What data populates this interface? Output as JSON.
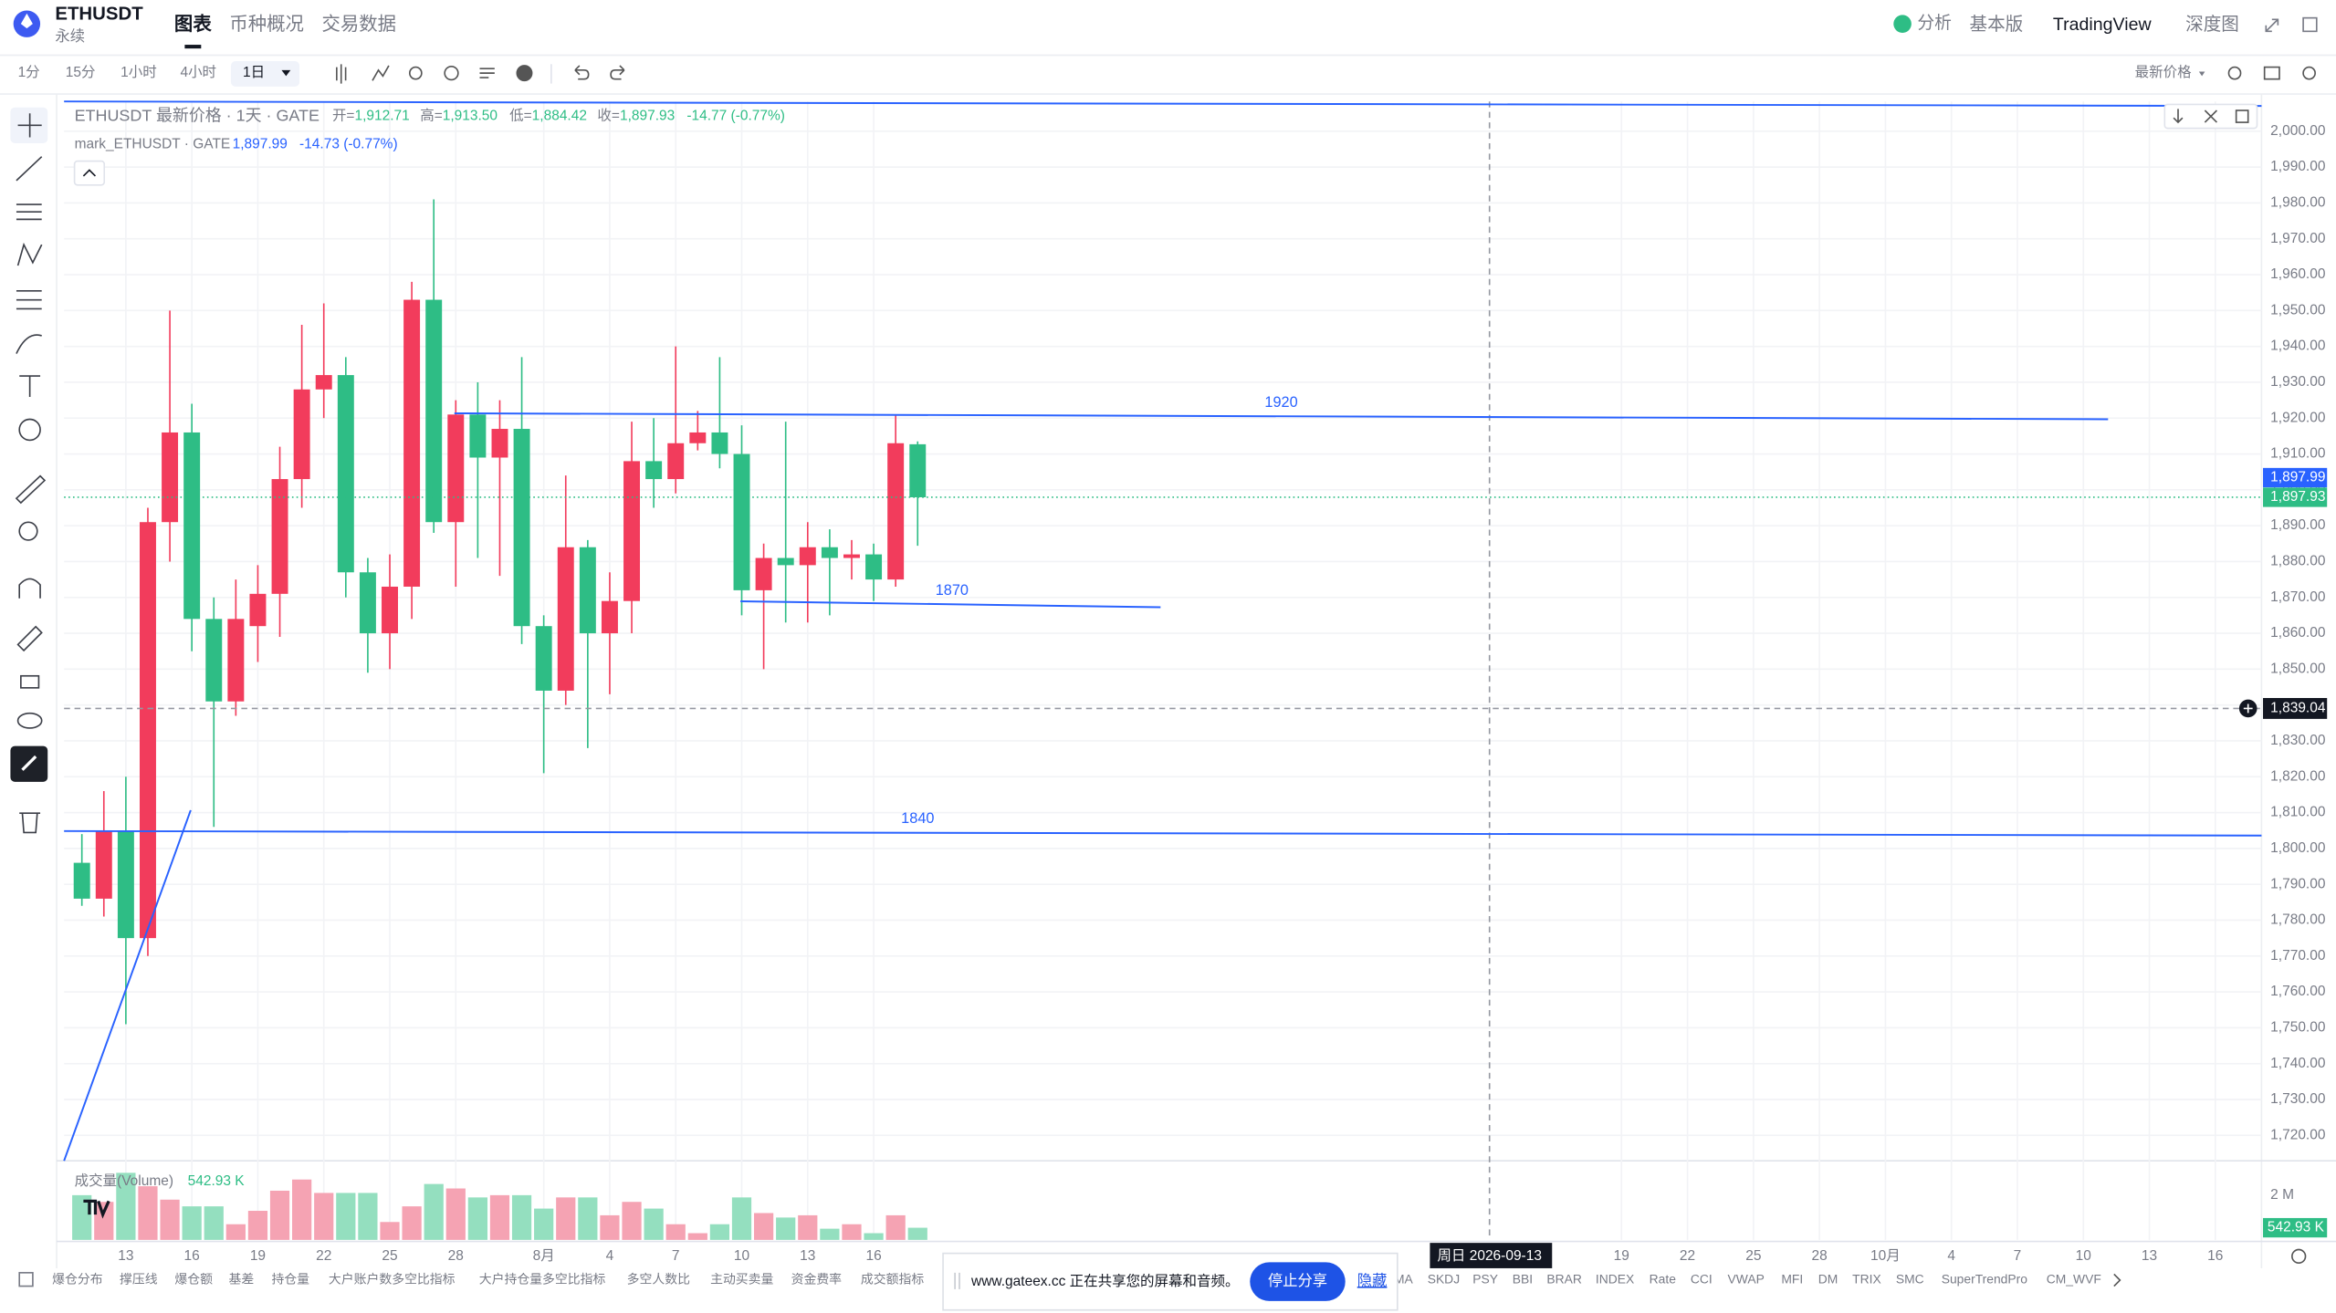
{
  "header": {
    "symbol": "ETHUSDT",
    "subtitle": "永续",
    "tabs": [
      "图表",
      "币种概况",
      "交易数据"
    ],
    "right": [
      "分析",
      "基本版",
      "TradingView",
      "深度图"
    ]
  },
  "toolbar": {
    "intervals": [
      "1分",
      "15分",
      "1小时",
      "4小时",
      "1日"
    ],
    "price_type": "最新价格"
  },
  "legend": {
    "main": "ETHUSDT 最新价格 · 1天 · GATE",
    "ohlc": [
      {
        "label": "开=",
        "value": "1,912.71"
      },
      {
        "label": "高=",
        "value": "1,913.50"
      },
      {
        "label": "低=",
        "value": "1,884.42"
      },
      {
        "label": "收=",
        "value": "1,897.93"
      }
    ],
    "change": "-14.77 (-0.77%)",
    "mark": "mark_ETHUSDT · GATE",
    "mark_price": "1,897.99",
    "mark_change": "-14.73 (-0.77%)"
  },
  "chart_data": {
    "type": "candlestick",
    "up_color": "#f23c5c",
    "down_color": "#2ebd85",
    "grid": true,
    "series": [
      {
        "name": "ETHUSDT",
        "open": [
          1796,
          1786,
          1805,
          1775,
          1891,
          1916,
          1864,
          1841,
          1862,
          1871,
          1903,
          1928,
          1932,
          1877,
          1860,
          1873,
          1953,
          1891,
          1921,
          1909,
          1917,
          1862,
          1844,
          1884,
          1860,
          1869,
          1908,
          1903,
          1913,
          1916,
          1910,
          1872,
          1881,
          1879,
          1884,
          1881,
          1882,
          1875,
          1912.71
        ],
        "high": [
          1804,
          1816,
          1820,
          1895,
          1950,
          1924,
          1870,
          1875,
          1879,
          1912,
          1946,
          1952,
          1937,
          1881,
          1882,
          1958,
          1981,
          1925,
          1930,
          1925,
          1937,
          1865,
          1904,
          1886,
          1877,
          1919,
          1920,
          1940,
          1922,
          1937,
          1918,
          1885,
          1919,
          1891,
          1889,
          1886,
          1885,
          1921,
          1913.5
        ],
        "low": [
          1784,
          1781,
          1751,
          1770,
          1880,
          1855,
          1806,
          1837,
          1852,
          1859,
          1895,
          1920,
          1870,
          1849,
          1850,
          1864,
          1888,
          1873,
          1881,
          1876,
          1857,
          1821,
          1840,
          1828,
          1843,
          1860,
          1895,
          1899,
          1911,
          1906,
          1865,
          1850,
          1863,
          1863,
          1865,
          1875,
          1869,
          1873,
          1884.42
        ],
        "close": [
          1786,
          1805,
          1775,
          1891,
          1916,
          1864,
          1841,
          1864,
          1871,
          1903,
          1928,
          1932,
          1877,
          1860,
          1873,
          1953,
          1891,
          1921,
          1909,
          1917,
          1862,
          1844,
          1884,
          1860,
          1869,
          1908,
          1903,
          1913,
          1916,
          1910,
          1872,
          1881,
          1879,
          1884,
          1881,
          1882,
          1875,
          1913,
          1897.93
        ]
      }
    ],
    "xlim": [
      -0.81,
      99.1
    ],
    "xticks": [
      {
        "value": 2,
        "label": "13"
      },
      {
        "value": 5,
        "label": "16"
      },
      {
        "value": 8,
        "label": "19"
      },
      {
        "value": 11,
        "label": "22"
      },
      {
        "value": 14,
        "label": "25"
      },
      {
        "value": 17,
        "label": "28"
      },
      {
        "value": 21,
        "label": "8月"
      },
      {
        "value": 24,
        "label": "4"
      },
      {
        "value": 27,
        "label": "7"
      },
      {
        "value": 30,
        "label": "10"
      },
      {
        "value": 33,
        "label": "13"
      },
      {
        "value": 36,
        "label": "16"
      },
      {
        "value": 70,
        "label": "19"
      },
      {
        "value": 73,
        "label": "22"
      },
      {
        "value": 76,
        "label": "25"
      },
      {
        "value": 79,
        "label": "28"
      },
      {
        "value": 82,
        "label": "10月"
      },
      {
        "value": 85,
        "label": "4"
      },
      {
        "value": 88,
        "label": "7"
      },
      {
        "value": 91,
        "label": "10"
      },
      {
        "value": 94,
        "label": "13"
      },
      {
        "value": 97,
        "label": "16"
      }
    ],
    "ylim": [
      1712.9,
      2008.3
    ],
    "yticks": [
      {
        "value": 1720,
        "label": "1,720.00"
      },
      {
        "value": 1730,
        "label": "1,730.00"
      },
      {
        "value": 1740,
        "label": "1,740.00"
      },
      {
        "value": 1750,
        "label": "1,750.00"
      },
      {
        "value": 1760,
        "label": "1,760.00"
      },
      {
        "value": 1770,
        "label": "1,770.00"
      },
      {
        "value": 1780,
        "label": "1,780.00"
      },
      {
        "value": 1790,
        "label": "1,790.00"
      },
      {
        "value": 1800,
        "label": "1,800.00"
      },
      {
        "value": 1810,
        "label": "1,810.00"
      },
      {
        "value": 1820,
        "label": "1,820.00"
      },
      {
        "value": 1830,
        "label": "1,830.00"
      },
      {
        "value": 1840,
        "label": "1,840.00"
      },
      {
        "value": 1850,
        "label": "1,850.00"
      },
      {
        "value": 1860,
        "label": "1,860.00"
      },
      {
        "value": 1870,
        "label": "1,870.00"
      },
      {
        "value": 1880,
        "label": "1,880.00"
      },
      {
        "value": 1890,
        "label": "1,890.00"
      },
      {
        "value": 1900,
        "label": "1,900.00"
      },
      {
        "value": 1910,
        "label": "1,910.00"
      },
      {
        "value": 1920,
        "label": "1,920.00"
      },
      {
        "value": 1930,
        "label": "1,930.00"
      },
      {
        "value": 1940,
        "label": "1,940.00"
      },
      {
        "value": 1950,
        "label": "1,950.00"
      },
      {
        "value": 1960,
        "label": "1,960.00"
      },
      {
        "value": 1970,
        "label": "1,970.00"
      },
      {
        "value": 1980,
        "label": "1,980.00"
      },
      {
        "value": 1990,
        "label": "1,990.00"
      },
      {
        "value": 2000,
        "label": "2,000.00"
      }
    ],
    "price_labels": [
      {
        "value": 1897.99,
        "label": "1,897.99",
        "color": "#2962ff"
      },
      {
        "value": 1897.93,
        "label": "1,897.93",
        "color": "#2ebd85"
      }
    ],
    "crosshair": {
      "price": {
        "value": 1839.04,
        "label": "1,839.04"
      },
      "date": {
        "value": 64,
        "label": "周日 2026-09-13"
      }
    },
    "annotations": [
      "1920",
      "1870",
      "1840"
    ],
    "volume": {
      "name": "成交量(Volume)",
      "up_color": "#f5a3b3",
      "down_color": "#94dfbf",
      "ylim": [
        0,
        3.07
      ],
      "yticks": [
        {
          "value": 2,
          "label": "2 M"
        }
      ],
      "values": [
        2.0,
        1.7,
        3.0,
        2.4,
        1.8,
        1.5,
        1.5,
        0.7,
        1.3,
        2.2,
        2.7,
        2.1,
        2.1,
        2.1,
        0.8,
        1.5,
        2.5,
        2.3,
        1.9,
        2.0,
        2.0,
        1.4,
        1.9,
        1.9,
        1.1,
        1.7,
        1.4,
        0.7,
        0.3,
        0.7,
        1.9,
        1.2,
        1.0,
        1.1,
        0.5,
        0.7,
        0.3,
        1.1,
        0.54293
      ],
      "last": {
        "value": 0.54293,
        "label": "542.93 K"
      }
    }
  },
  "indicators": [
    "爆仓分布",
    "撑压线",
    "爆仓额",
    "基差",
    "持仓量",
    "大户账户数多空比指标",
    "大户持仓量多空比指标",
    "多空人数比",
    "主动买卖量",
    "资金费率",
    "成交额指标",
    "MA",
    "SKDJ",
    "PSY",
    "BBI",
    "BRAR",
    "INDEX",
    "Rate",
    "CCI",
    "VWAP",
    "MFI",
    "DM",
    "TRIX",
    "SMC",
    "SuperTrendPro",
    "CM_WVF"
  ],
  "share_bar": {
    "text": "www.gateex.cc 正在共享您的屏幕和音频。",
    "stop": "停止分享",
    "hide": "隐藏"
  }
}
